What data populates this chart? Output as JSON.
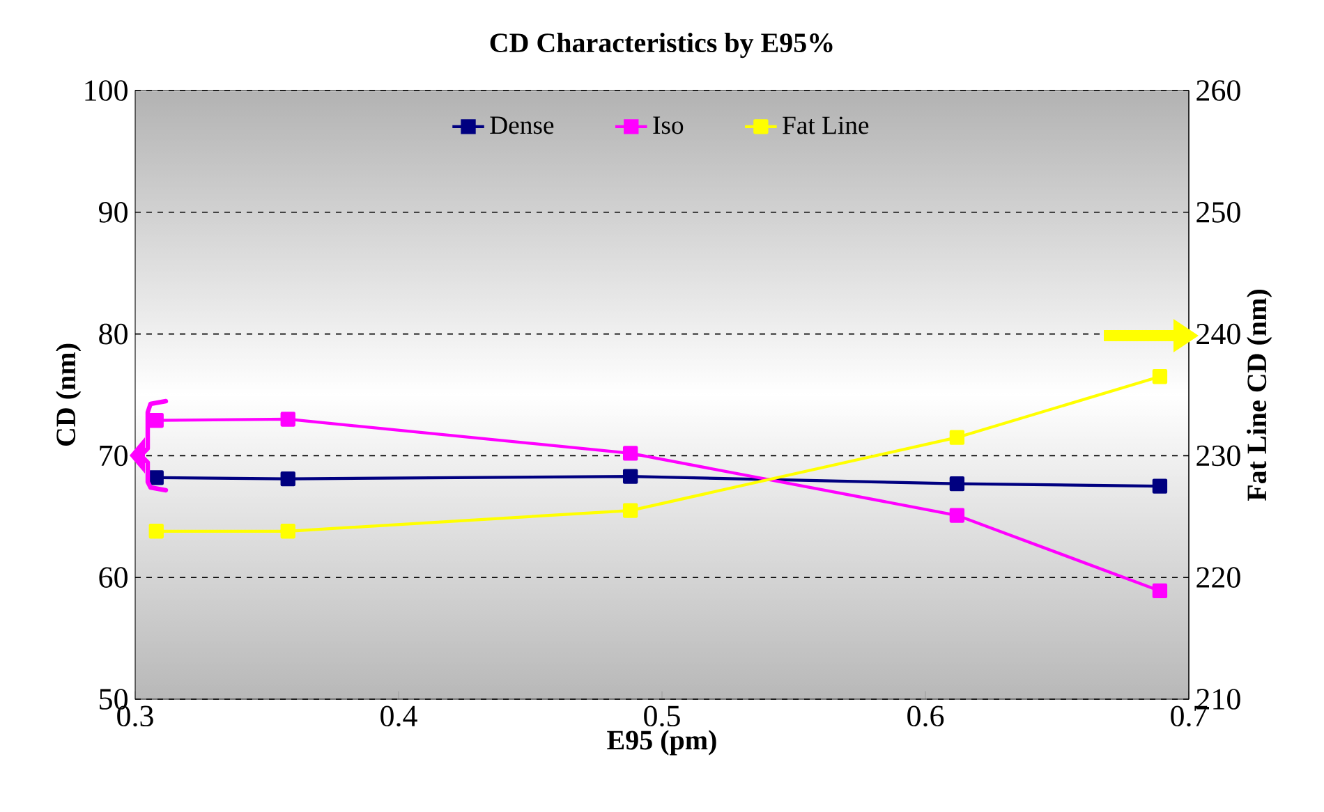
{
  "chart_data": {
    "type": "line",
    "title": "CD Characteristics by E95%",
    "xlabel": "E95 (pm)",
    "ylabel": "CD (nm)",
    "y2label": "Fat Line CD (nm)",
    "x": [
      0.308,
      0.358,
      0.488,
      0.612,
      0.689
    ],
    "series": [
      {
        "name": "Dense",
        "color": "#000080",
        "values": [
          68.2,
          68.1,
          68.3,
          67.7,
          67.5
        ]
      },
      {
        "name": "Iso",
        "color": "#ff00ff",
        "values": [
          72.9,
          73.0,
          70.2,
          65.1,
          58.9
        ]
      },
      {
        "name": "Fat Line",
        "color": "#ffff00",
        "axis": "y2",
        "values": [
          223.8,
          223.8,
          225.5,
          231.5,
          236.5
        ]
      }
    ],
    "xlim": [
      0.3,
      0.7
    ],
    "xticks": [
      0.3,
      0.4,
      0.5,
      0.6,
      0.7
    ],
    "ylim": [
      50,
      100
    ],
    "yticks": [
      50,
      60,
      70,
      80,
      90,
      100
    ],
    "y2lim": [
      210,
      260
    ],
    "y2ticks": [
      210,
      220,
      230,
      240,
      250,
      260
    ],
    "grid": "y",
    "legend": "top",
    "marker": "square",
    "line_style": "solid"
  }
}
